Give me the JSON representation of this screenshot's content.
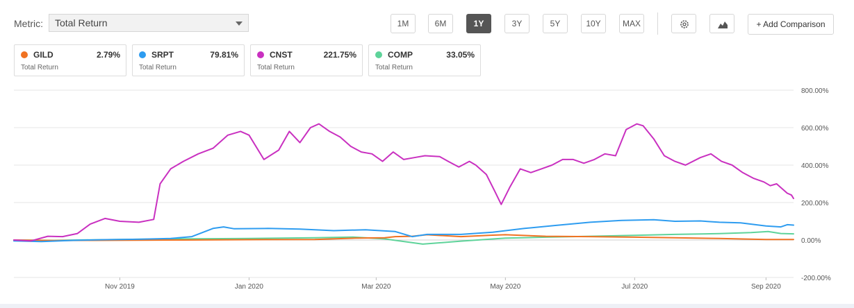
{
  "metric": {
    "label": "Metric:",
    "selected": "Total Return"
  },
  "periods": [
    "1M",
    "6M",
    "1Y",
    "3Y",
    "5Y",
    "10Y",
    "MAX"
  ],
  "active_period": "1Y",
  "toolbar": {
    "settings_icon": "gear-icon",
    "chart_type_icon": "mountain-chart-icon",
    "add_comparison": "+ Add Comparison"
  },
  "cards": [
    {
      "ticker": "GILD",
      "value": "2.79%",
      "sub": "Total Return",
      "color": "#f07222"
    },
    {
      "ticker": "SRPT",
      "value": "79.81%",
      "sub": "Total Return",
      "color": "#2d9cf0"
    },
    {
      "ticker": "CNST",
      "value": "221.75%",
      "sub": "Total Return",
      "color": "#c930c0"
    },
    {
      "ticker": "COMP",
      "value": "33.05%",
      "sub": "Total Return",
      "color": "#5ed39a"
    }
  ],
  "chart_data": {
    "type": "line",
    "title": "",
    "xlabel": "",
    "ylabel": "",
    "x_range": [
      "2019-09-12",
      "2020-09-14"
    ],
    "ylim": [
      -200,
      800
    ],
    "y_ticks": [
      {
        "value": 800,
        "label": "800.00%"
      },
      {
        "value": 600,
        "label": "600.00%"
      },
      {
        "value": 400,
        "label": "400.00%"
      },
      {
        "value": 200,
        "label": "200.00%"
      },
      {
        "value": 0,
        "label": "0.00%"
      },
      {
        "value": -200,
        "label": "-200.00%"
      }
    ],
    "x_ticks": [
      {
        "date": "2019-11-01",
        "label": "Nov 2019"
      },
      {
        "date": "2020-01-01",
        "label": "Jan 2020"
      },
      {
        "date": "2020-03-01",
        "label": "Mar 2020"
      },
      {
        "date": "2020-05-01",
        "label": "May 2020"
      },
      {
        "date": "2020-07-01",
        "label": "Jul 2020"
      },
      {
        "date": "2020-09-01",
        "label": "Sep 2020"
      }
    ],
    "grid": "horizontal",
    "series": [
      {
        "name": "COMP",
        "color": "#5ed39a",
        "points": [
          [
            "2019-09-12",
            0
          ],
          [
            "2019-10-01",
            -2
          ],
          [
            "2019-10-20",
            1
          ],
          [
            "2019-11-10",
            4
          ],
          [
            "2019-12-01",
            6
          ],
          [
            "2020-01-01",
            8
          ],
          [
            "2020-02-01",
            12
          ],
          [
            "2020-02-19",
            16
          ],
          [
            "2020-03-05",
            6
          ],
          [
            "2020-03-23",
            -22
          ],
          [
            "2020-04-10",
            -6
          ],
          [
            "2020-05-01",
            10
          ],
          [
            "2020-05-20",
            15
          ],
          [
            "2020-06-10",
            20
          ],
          [
            "2020-07-01",
            25
          ],
          [
            "2020-07-20",
            30
          ],
          [
            "2020-08-10",
            34
          ],
          [
            "2020-08-25",
            40
          ],
          [
            "2020-09-02",
            45
          ],
          [
            "2020-09-08",
            35
          ],
          [
            "2020-09-14",
            33
          ]
        ]
      },
      {
        "name": "GILD",
        "color": "#f07222",
        "points": [
          [
            "2019-09-12",
            0
          ],
          [
            "2019-10-01",
            -3
          ],
          [
            "2019-10-20",
            -2
          ],
          [
            "2019-11-10",
            -1
          ],
          [
            "2019-12-01",
            0
          ],
          [
            "2020-01-01",
            2
          ],
          [
            "2020-02-01",
            3
          ],
          [
            "2020-02-20",
            10
          ],
          [
            "2020-03-05",
            12
          ],
          [
            "2020-03-10",
            18
          ],
          [
            "2020-03-18",
            20
          ],
          [
            "2020-03-25",
            28
          ],
          [
            "2020-04-10",
            18
          ],
          [
            "2020-04-25",
            26
          ],
          [
            "2020-05-01",
            28
          ],
          [
            "2020-05-20",
            20
          ],
          [
            "2020-06-10",
            18
          ],
          [
            "2020-07-01",
            15
          ],
          [
            "2020-07-20",
            12
          ],
          [
            "2020-08-10",
            8
          ],
          [
            "2020-09-01",
            3
          ],
          [
            "2020-09-14",
            2.79
          ]
        ]
      },
      {
        "name": "SRPT",
        "color": "#2d9cf0",
        "points": [
          [
            "2019-09-12",
            -5
          ],
          [
            "2019-09-25",
            -8
          ],
          [
            "2019-10-10",
            -2
          ],
          [
            "2019-10-25",
            2
          ],
          [
            "2019-11-10",
            4
          ],
          [
            "2019-11-25",
            8
          ],
          [
            "2019-12-05",
            18
          ],
          [
            "2019-12-15",
            62
          ],
          [
            "2019-12-20",
            70
          ],
          [
            "2019-12-25",
            60
          ],
          [
            "2020-01-10",
            62
          ],
          [
            "2020-01-25",
            58
          ],
          [
            "2020-02-10",
            50
          ],
          [
            "2020-02-25",
            55
          ],
          [
            "2020-03-10",
            45
          ],
          [
            "2020-03-18",
            18
          ],
          [
            "2020-03-25",
            30
          ],
          [
            "2020-04-10",
            30
          ],
          [
            "2020-04-25",
            42
          ],
          [
            "2020-05-10",
            62
          ],
          [
            "2020-05-25",
            78
          ],
          [
            "2020-06-10",
            95
          ],
          [
            "2020-06-25",
            105
          ],
          [
            "2020-07-10",
            108
          ],
          [
            "2020-07-20",
            100
          ],
          [
            "2020-08-01",
            102
          ],
          [
            "2020-08-10",
            95
          ],
          [
            "2020-08-20",
            92
          ],
          [
            "2020-09-01",
            75
          ],
          [
            "2020-09-08",
            70
          ],
          [
            "2020-09-11",
            82
          ],
          [
            "2020-09-14",
            79.81
          ]
        ]
      },
      {
        "name": "CNST",
        "color": "#c930c0",
        "points": [
          [
            "2019-09-12",
            0
          ],
          [
            "2019-09-20",
            -5
          ],
          [
            "2019-09-28",
            20
          ],
          [
            "2019-10-05",
            18
          ],
          [
            "2019-10-12",
            35
          ],
          [
            "2019-10-18",
            85
          ],
          [
            "2019-10-25",
            115
          ],
          [
            "2019-11-01",
            100
          ],
          [
            "2019-11-10",
            95
          ],
          [
            "2019-11-17",
            110
          ],
          [
            "2019-11-20",
            300
          ],
          [
            "2019-11-25",
            380
          ],
          [
            "2019-12-01",
            420
          ],
          [
            "2019-12-08",
            460
          ],
          [
            "2019-12-15",
            490
          ],
          [
            "2019-12-22",
            560
          ],
          [
            "2019-12-28",
            580
          ],
          [
            "2020-01-01",
            560
          ],
          [
            "2020-01-08",
            430
          ],
          [
            "2020-01-15",
            480
          ],
          [
            "2020-01-20",
            580
          ],
          [
            "2020-01-25",
            520
          ],
          [
            "2020-01-30",
            600
          ],
          [
            "2020-02-03",
            620
          ],
          [
            "2020-02-08",
            580
          ],
          [
            "2020-02-13",
            550
          ],
          [
            "2020-02-18",
            500
          ],
          [
            "2020-02-23",
            470
          ],
          [
            "2020-02-28",
            460
          ],
          [
            "2020-03-04",
            420
          ],
          [
            "2020-03-09",
            470
          ],
          [
            "2020-03-14",
            430
          ],
          [
            "2020-03-19",
            440
          ],
          [
            "2020-03-24",
            450
          ],
          [
            "2020-03-31",
            445
          ],
          [
            "2020-04-04",
            420
          ],
          [
            "2020-04-09",
            390
          ],
          [
            "2020-04-14",
            420
          ],
          [
            "2020-04-17",
            400
          ],
          [
            "2020-04-22",
            350
          ],
          [
            "2020-04-26",
            260
          ],
          [
            "2020-04-29",
            190
          ],
          [
            "2020-05-03",
            280
          ],
          [
            "2020-05-08",
            380
          ],
          [
            "2020-05-13",
            360
          ],
          [
            "2020-05-18",
            380
          ],
          [
            "2020-05-23",
            400
          ],
          [
            "2020-05-28",
            430
          ],
          [
            "2020-06-02",
            430
          ],
          [
            "2020-06-07",
            410
          ],
          [
            "2020-06-12",
            430
          ],
          [
            "2020-06-17",
            460
          ],
          [
            "2020-06-22",
            450
          ],
          [
            "2020-06-27",
            590
          ],
          [
            "2020-07-02",
            620
          ],
          [
            "2020-07-05",
            610
          ],
          [
            "2020-07-10",
            540
          ],
          [
            "2020-07-15",
            450
          ],
          [
            "2020-07-20",
            420
          ],
          [
            "2020-07-25",
            400
          ],
          [
            "2020-08-01",
            440
          ],
          [
            "2020-08-06",
            460
          ],
          [
            "2020-08-11",
            420
          ],
          [
            "2020-08-16",
            400
          ],
          [
            "2020-08-21",
            360
          ],
          [
            "2020-08-26",
            330
          ],
          [
            "2020-08-31",
            310
          ],
          [
            "2020-09-03",
            290
          ],
          [
            "2020-09-06",
            300
          ],
          [
            "2020-09-09",
            270
          ],
          [
            "2020-09-11",
            250
          ],
          [
            "2020-09-13",
            240
          ],
          [
            "2020-09-14",
            221.75
          ]
        ]
      }
    ]
  }
}
